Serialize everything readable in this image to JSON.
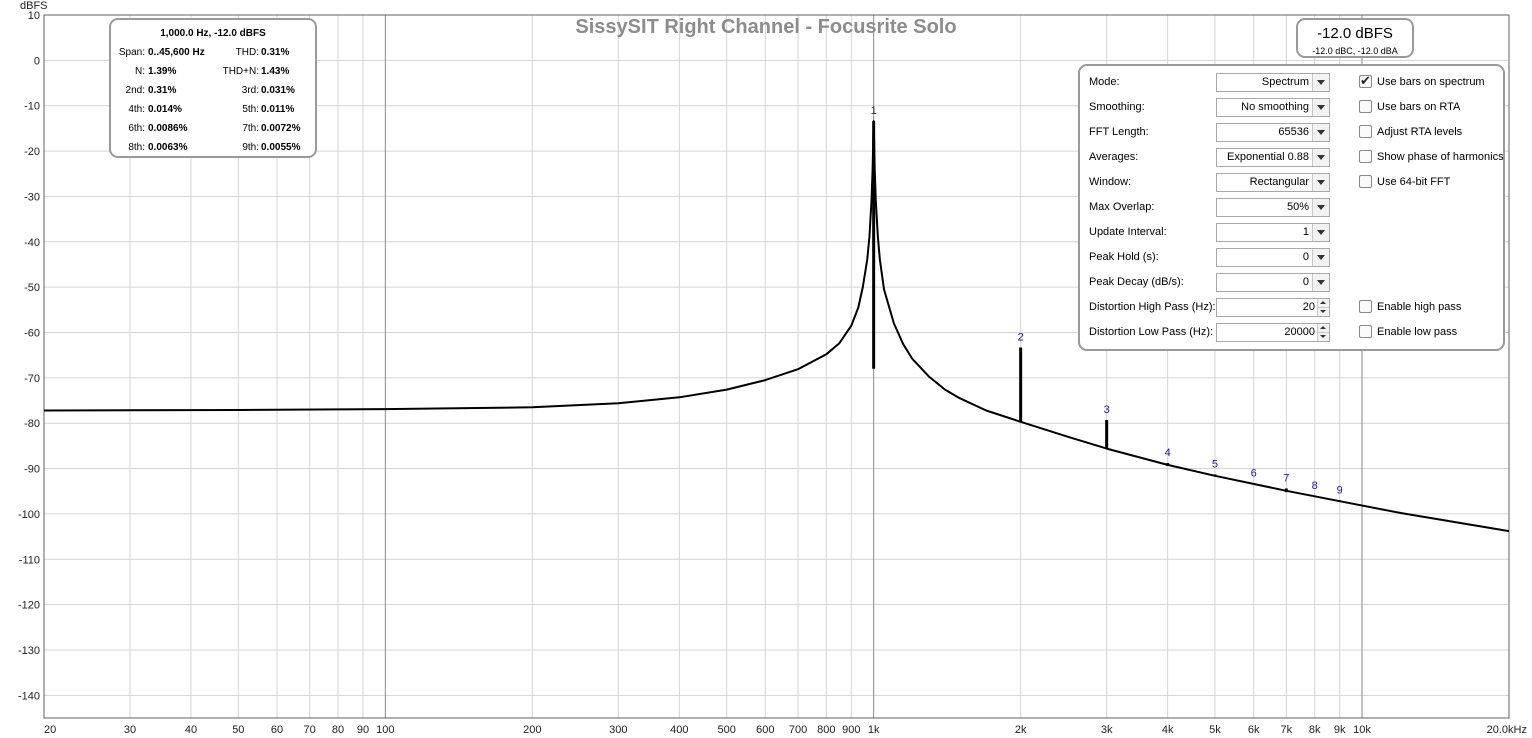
{
  "chart_data": {
    "type": "line",
    "title": "SissySIT Right Channel - Focusrite Solo",
    "ylabel": "dBFS",
    "xlabel": "",
    "x_scale": "log",
    "xlim": [
      20,
      20000
    ],
    "ylim": [
      -145,
      10
    ],
    "grid": true,
    "y_ticks": [
      10,
      0,
      -10,
      -20,
      -30,
      -40,
      -50,
      -60,
      -70,
      -80,
      -90,
      -100,
      -110,
      -120,
      -130,
      -140
    ],
    "x_ticks": [
      {
        "v": 20,
        "l": "20"
      },
      {
        "v": 30,
        "l": "30"
      },
      {
        "v": 40,
        "l": "40"
      },
      {
        "v": 50,
        "l": "50"
      },
      {
        "v": 60,
        "l": "60"
      },
      {
        "v": 70,
        "l": "70"
      },
      {
        "v": 80,
        "l": "80"
      },
      {
        "v": 90,
        "l": "90"
      },
      {
        "v": 100,
        "l": "100"
      },
      {
        "v": 200,
        "l": "200"
      },
      {
        "v": 300,
        "l": "300"
      },
      {
        "v": 400,
        "l": "400"
      },
      {
        "v": 500,
        "l": "500"
      },
      {
        "v": 600,
        "l": "600"
      },
      {
        "v": 700,
        "l": "700"
      },
      {
        "v": 800,
        "l": "800"
      },
      {
        "v": 900,
        "l": "900"
      },
      {
        "v": 1000,
        "l": "1k"
      },
      {
        "v": 2000,
        "l": "2k"
      },
      {
        "v": 3000,
        "l": "3k"
      },
      {
        "v": 4000,
        "l": "4k"
      },
      {
        "v": 5000,
        "l": "5k"
      },
      {
        "v": 6000,
        "l": "6k"
      },
      {
        "v": 7000,
        "l": "7k"
      },
      {
        "v": 8000,
        "l": "8k"
      },
      {
        "v": 9000,
        "l": "9k"
      },
      {
        "v": 10000,
        "l": "10k"
      },
      {
        "v": 20000,
        "l": "20.0kHz"
      }
    ],
    "series": [
      {
        "color": "#000000",
        "x": [
          20,
          50,
          100,
          200,
          300,
          400,
          500,
          600,
          700,
          800,
          850,
          900,
          930,
          950,
          970,
          980,
          990,
          995,
          1000,
          1005,
          1010,
          1020,
          1030,
          1050,
          1100,
          1150,
          1200,
          1300,
          1400,
          1500,
          1700,
          2000,
          2500,
          3000,
          4000,
          5000,
          7000,
          9000,
          12000,
          20000
        ],
        "y": [
          -77.2,
          -77.1,
          -76.9,
          -76.5,
          -75.6,
          -74.3,
          -72.6,
          -70.5,
          -68.1,
          -64.8,
          -62.4,
          -58.5,
          -54.5,
          -50.0,
          -44.0,
          -39.0,
          -31.0,
          -24.0,
          -13.4,
          -24.0,
          -31.0,
          -39.0,
          -44.0,
          -50.5,
          -58.0,
          -62.6,
          -65.8,
          -69.8,
          -72.6,
          -74.5,
          -77.2,
          -79.7,
          -83.0,
          -85.6,
          -89.2,
          -91.6,
          -94.9,
          -97.2,
          -99.8,
          -103.8
        ]
      }
    ],
    "harmonics": [
      {
        "label": "1",
        "freq": 1000,
        "peak": -13.4,
        "base": -68.0
      },
      {
        "label": "2",
        "freq": 2000,
        "peak": -63.3,
        "base": -79.8
      },
      {
        "label": "3",
        "freq": 3000,
        "peak": -79.3,
        "base": -85.6
      },
      {
        "label": "4",
        "freq": 4000,
        "peak": -88.8,
        "base": -89.4
      },
      {
        "label": "5",
        "freq": 5000,
        "peak": -91.3,
        "base": -91.7
      },
      {
        "label": "6",
        "freq": 6000,
        "peak": -93.3,
        "base": -93.5
      },
      {
        "label": "7",
        "freq": 7000,
        "peak": -94.4,
        "base": -95.2
      },
      {
        "label": "8",
        "freq": 8000,
        "peak": -96.0,
        "base": -96.2
      },
      {
        "label": "9",
        "freq": 9000,
        "peak": -97.0,
        "base": -97.3
      }
    ],
    "colors": {
      "trace": "#000000",
      "harmonic_label": "#1a1aa0",
      "grid": "#d4d4d4",
      "grid_major": "#8a8a8a",
      "title": "#8c8c8c"
    }
  },
  "info_box": {
    "header": "1,000.0 Hz, -12.0 dBFS",
    "rows": [
      {
        "l1": "Span:",
        "v1": "0..45,600 Hz",
        "l2": "THD:",
        "v2": "0.31%"
      },
      {
        "l1": "N:",
        "v1": "1.39%",
        "l2": "THD+N:",
        "v2": "1.43%"
      },
      {
        "l1": "2nd:",
        "v1": "0.31%",
        "l2": "3rd:",
        "v2": "0.031%"
      },
      {
        "l1": "4th:",
        "v1": "0.014%",
        "l2": "5th:",
        "v2": "0.011%"
      },
      {
        "l1": "6th:",
        "v1": "0.0086%",
        "l2": "7th:",
        "v2": "0.0072%"
      },
      {
        "l1": "8th:",
        "v1": "0.0063%",
        "l2": "9th:",
        "v2": "0.0055%"
      }
    ]
  },
  "level_box": {
    "main": "-12.0 dBFS",
    "sub": "-12.0 dBC, -12.0 dBA"
  },
  "controls": {
    "rows": [
      {
        "label": "Mode:",
        "value": "Spectrum",
        "kind": "select",
        "check": "Use bars on spectrum",
        "checked": true
      },
      {
        "label": "Smoothing:",
        "value": "No  smoothing",
        "kind": "select",
        "check": "Use bars on RTA",
        "checked": false
      },
      {
        "label": "FFT Length:",
        "value": "65536",
        "kind": "select",
        "check": "Adjust RTA levels",
        "checked": false
      },
      {
        "label": "Averages:",
        "value": "Exponential 0.88",
        "kind": "select",
        "check": "Show phase of harmonics",
        "checked": false
      },
      {
        "label": "Window:",
        "value": "Rectangular",
        "kind": "select",
        "check": "Use 64-bit FFT",
        "checked": false
      },
      {
        "label": "Max Overlap:",
        "value": "50%",
        "kind": "select"
      },
      {
        "label": "Update Interval:",
        "value": "1",
        "kind": "select"
      },
      {
        "label": "Peak Hold (s):",
        "value": "0",
        "kind": "select"
      },
      {
        "label": "Peak Decay (dB/s):",
        "value": "0",
        "kind": "select"
      },
      {
        "label": "Distortion High Pass (Hz):",
        "value": "20",
        "kind": "spin",
        "check": "Enable high pass",
        "checked": false
      },
      {
        "label": "Distortion Low Pass (Hz):",
        "value": "20000",
        "kind": "spin",
        "check": "Enable low pass",
        "checked": false
      }
    ]
  }
}
